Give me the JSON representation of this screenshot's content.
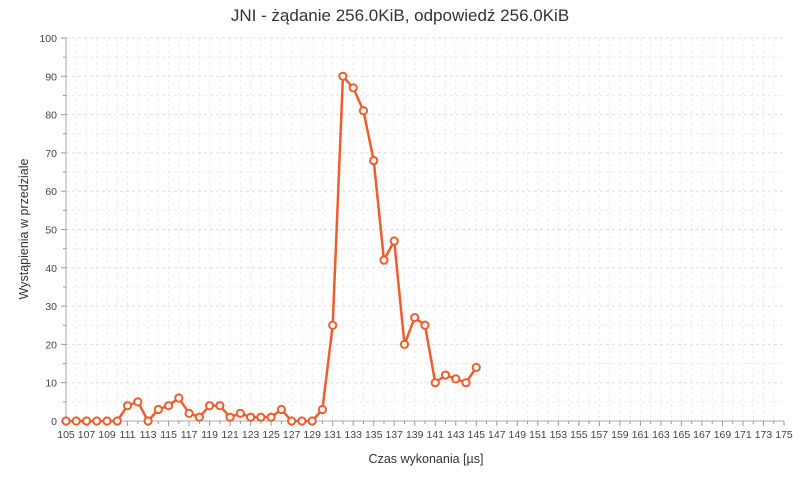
{
  "chart_data": {
    "type": "line",
    "title": "JNI - żądanie 256.0KiB, odpowiedź 256.0KiB",
    "xlabel": "Czas wykonania [µs]",
    "ylabel": "Wystąpienia w przedziale",
    "xlim": [
      105,
      175
    ],
    "ylim": [
      0,
      100
    ],
    "x_ticks": [
      105,
      107,
      109,
      111,
      113,
      115,
      117,
      119,
      121,
      123,
      125,
      127,
      129,
      131,
      133,
      135,
      137,
      139,
      141,
      143,
      145,
      147,
      149,
      151,
      153,
      155,
      157,
      159,
      161,
      163,
      165,
      167,
      169,
      171,
      173,
      175
    ],
    "y_ticks": [
      0,
      10,
      20,
      30,
      40,
      50,
      60,
      70,
      80,
      90,
      100
    ],
    "grid": true,
    "color": "#ee5d2e",
    "series": [
      {
        "x": [
          105,
          106,
          107,
          108,
          109,
          110,
          111,
          112,
          113,
          114,
          115,
          116,
          117,
          118,
          119,
          120,
          121,
          122,
          123,
          124,
          125,
          126,
          127,
          128,
          129,
          130,
          131,
          132,
          133,
          134,
          135,
          136,
          137,
          138,
          139,
          140,
          141,
          142,
          143,
          144,
          145
        ],
        "values": [
          0,
          0,
          0,
          0,
          0,
          0,
          4,
          5,
          0,
          3,
          4,
          6,
          2,
          1,
          4,
          4,
          1,
          2,
          1,
          1,
          1,
          3,
          0,
          0,
          0,
          3,
          25,
          90,
          87,
          81,
          68,
          42,
          47,
          20,
          27,
          25,
          10,
          12,
          11,
          10,
          14
        ]
      }
    ]
  }
}
